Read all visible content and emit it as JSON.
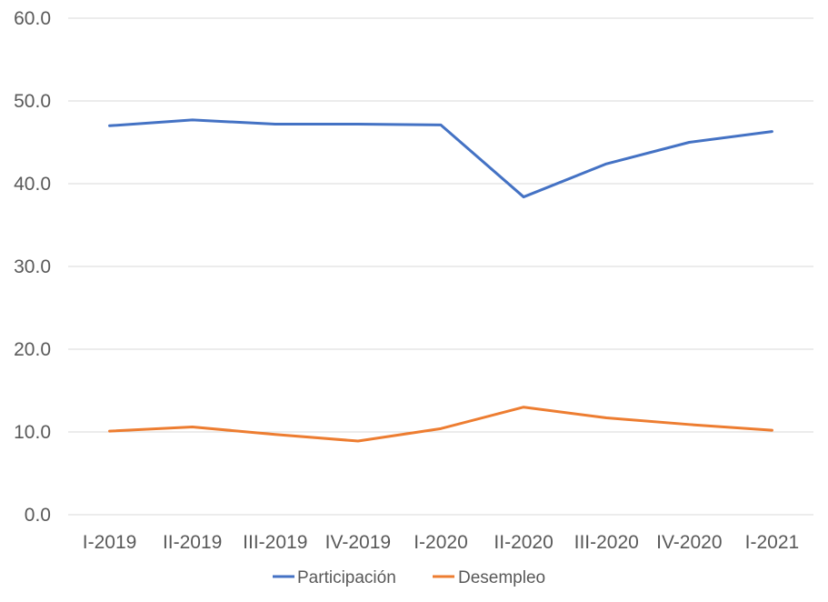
{
  "chart_data": {
    "type": "line",
    "title": "",
    "xlabel": "",
    "ylabel": "",
    "categories": [
      "I-2019",
      "II-2019",
      "III-2019",
      "IV-2019",
      "I-2020",
      "II-2020",
      "III-2020",
      "IV-2020",
      "I-2021"
    ],
    "ylim": [
      0,
      60
    ],
    "yticks": [
      "0.0",
      "10.0",
      "20.0",
      "30.0",
      "40.0",
      "50.0",
      "60.0"
    ],
    "grid": true,
    "legend_position": "bottom",
    "series": [
      {
        "name": "Participación",
        "color": "#4472c4",
        "values": [
          47.0,
          47.7,
          47.2,
          47.2,
          47.1,
          38.4,
          42.4,
          45.0,
          46.3
        ]
      },
      {
        "name": "Desempleo",
        "color": "#ed7d31",
        "values": [
          10.1,
          10.6,
          9.7,
          8.9,
          10.4,
          13.0,
          11.7,
          10.9,
          10.2
        ]
      }
    ]
  }
}
